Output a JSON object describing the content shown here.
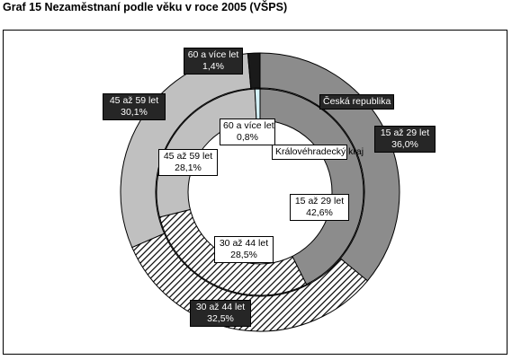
{
  "title": "Graf 15 Nezaměstnaní podle věku v roce 2005 (VŠPS)",
  "chart_data": {
    "type": "donut",
    "categories": [
      "15 až 29 let",
      "30 až 44 let",
      "45 až 59 let",
      "60 a více let"
    ],
    "rings": [
      {
        "name": "Česká republika",
        "position": "outer",
        "values": [
          36.0,
          32.5,
          30.1,
          1.4
        ],
        "value_labels": [
          "36,0%",
          "32,5%",
          "30,1%",
          "1,4%"
        ]
      },
      {
        "name": "Královéhradecký kraj",
        "position": "inner",
        "values": [
          42.6,
          28.5,
          28.1,
          0.8
        ],
        "value_labels": [
          "42,6%",
          "28,5%",
          "28,1%",
          "0,8%"
        ]
      }
    ],
    "colors": {
      "15 až 29 let": "#8c8c8c",
      "30 až 44 let": "hatched",
      "45 až 59 let": "#c0c0c0",
      "60 a více let outer": "#1a1a1a",
      "60 a více let inner": "#d4f2f8"
    },
    "ring_labels": [
      "Česká republika",
      "Královéhradecký kraj"
    ]
  }
}
